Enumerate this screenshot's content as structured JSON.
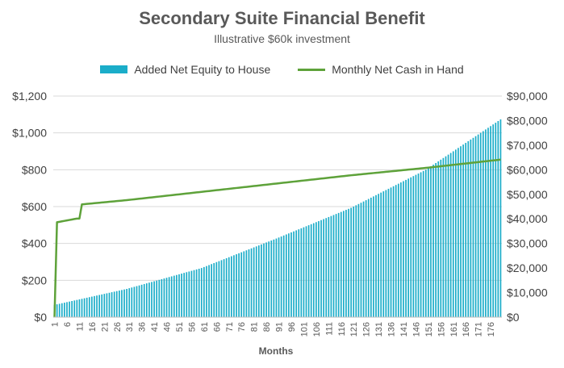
{
  "chart_data": {
    "type": "bar+line",
    "title": "Secondary Suite Financial Benefit",
    "subtitle": "Illustrative $60k investment",
    "xlabel": "Months",
    "x_tick_labels": [
      "1",
      "6",
      "11",
      "16",
      "21",
      "26",
      "31",
      "36",
      "41",
      "46",
      "51",
      "56",
      "61",
      "66",
      "71",
      "76",
      "81",
      "86",
      "91",
      "96",
      "101",
      "106",
      "111",
      "116",
      "121",
      "126",
      "131",
      "136",
      "141",
      "146",
      "151",
      "156",
      "161",
      "166",
      "171",
      "176"
    ],
    "x_range": [
      1,
      180
    ],
    "left_axis": {
      "ylim": [
        0,
        1200
      ],
      "ticks": [
        "$0",
        "$200",
        "$400",
        "$600",
        "$800",
        "$1,000",
        "$1,200"
      ],
      "tick_values": [
        0,
        200,
        400,
        600,
        800,
        1000,
        1200
      ]
    },
    "right_axis": {
      "ylim": [
        0,
        90000
      ],
      "ticks": [
        "$0",
        "$10,000",
        "$20,000",
        "$30,000",
        "$40,000",
        "$50,000",
        "$60,000",
        "$70,000",
        "$80,000",
        "$90,000"
      ],
      "tick_values": [
        0,
        10000,
        20000,
        30000,
        40000,
        50000,
        60000,
        70000,
        80000,
        90000
      ]
    },
    "grid": true,
    "legend_position": "top",
    "series": [
      {
        "name": "Added Net Equity to House",
        "type": "bar",
        "axis": "right",
        "color": "#1BADC9",
        "points": [
          [
            1,
            5000
          ],
          [
            30,
            11500
          ],
          [
            60,
            20000
          ],
          [
            90,
            32000
          ],
          [
            120,
            44500
          ],
          [
            150,
            60000
          ],
          [
            180,
            80500
          ]
        ]
      },
      {
        "name": "Monthly Net Cash in Hand",
        "type": "line",
        "axis": "left",
        "color": "#5EA23A",
        "points": [
          [
            1,
            0
          ],
          [
            2,
            515
          ],
          [
            10,
            535
          ],
          [
            11,
            535
          ],
          [
            12,
            612
          ],
          [
            30,
            635
          ],
          [
            60,
            680
          ],
          [
            90,
            725
          ],
          [
            120,
            770
          ],
          [
            150,
            810
          ],
          [
            180,
            855
          ]
        ]
      }
    ]
  }
}
